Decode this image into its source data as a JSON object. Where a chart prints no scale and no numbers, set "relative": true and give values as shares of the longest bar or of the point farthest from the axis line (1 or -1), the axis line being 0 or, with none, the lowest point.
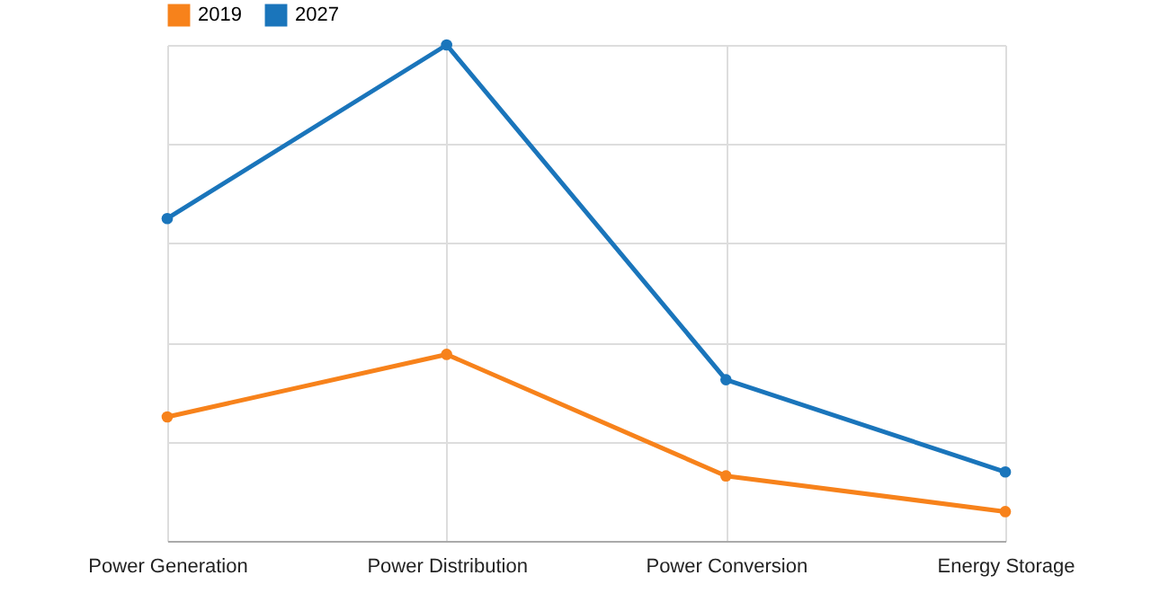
{
  "chart_data": {
    "type": "line",
    "relative": true,
    "categories": [
      "Power Generation",
      "Power Distribution",
      "Power Conversion",
      "Energy Storage"
    ],
    "series": [
      {
        "name": "2019",
        "color": "#f7821b",
        "values": [
          0.25,
          0.376,
          0.131,
          0.059
        ]
      },
      {
        "name": "2027",
        "color": "#1a75bb",
        "values": [
          0.65,
          1,
          0.325,
          0.139
        ]
      }
    ],
    "legend": "top",
    "grid": true,
    "marker": "circle",
    "line_style": "solid"
  }
}
